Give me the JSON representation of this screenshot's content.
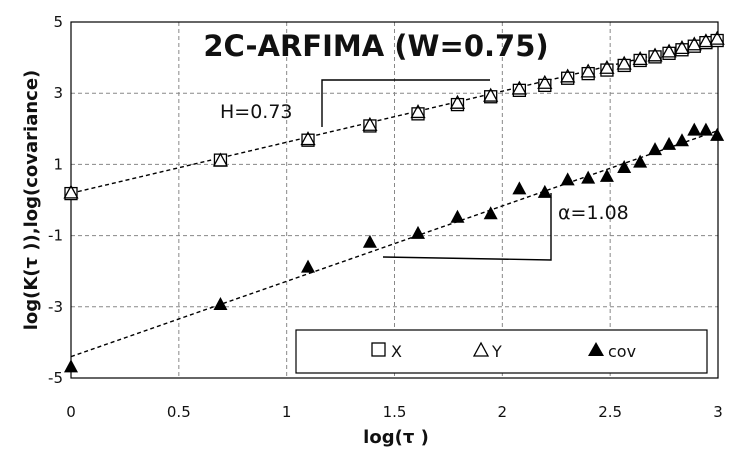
{
  "chart_data": {
    "type": "scatter",
    "title": "2C-ARFIMA (W=0.75)",
    "xlabel": "log(τ )",
    "ylabel": "log(K(τ )),log(covariance)",
    "xlim": [
      0,
      3
    ],
    "ylim": [
      -5,
      5
    ],
    "x_ticks": [
      "0",
      "0.5",
      "1",
      "1.5",
      "2",
      "2.5",
      "3"
    ],
    "y_ticks": [
      "-5",
      "-3",
      "-1",
      "1",
      "3",
      "5"
    ],
    "grid": "dashed major gridlines",
    "legend_position": "bottom-right",
    "series": [
      {
        "name": "X",
        "marker": "open-square",
        "x": [
          0,
          0.693,
          1.099,
          1.386,
          1.609,
          1.792,
          1.946,
          2.079,
          2.197,
          2.303,
          2.398,
          2.485,
          2.565,
          2.639,
          2.708,
          2.773,
          2.833,
          2.89,
          2.944,
          2.996
        ],
        "y": [
          0.18,
          1.12,
          1.68,
          2.08,
          2.42,
          2.68,
          2.9,
          3.08,
          3.22,
          3.42,
          3.55,
          3.65,
          3.78,
          3.92,
          4.02,
          4.12,
          4.22,
          4.32,
          4.42,
          4.48
        ]
      },
      {
        "name": "Y",
        "marker": "open-triangle",
        "x": [
          0,
          0.693,
          1.099,
          1.386,
          1.609,
          1.792,
          1.946,
          2.079,
          2.197,
          2.303,
          2.398,
          2.485,
          2.565,
          2.639,
          2.708,
          2.773,
          2.833,
          2.89,
          2.944,
          2.996
        ],
        "y": [
          0.2,
          1.1,
          1.7,
          2.1,
          2.46,
          2.72,
          2.92,
          3.12,
          3.28,
          3.46,
          3.6,
          3.7,
          3.82,
          3.95,
          4.05,
          4.16,
          4.26,
          4.36,
          4.45,
          4.52
        ]
      },
      {
        "name": "cov",
        "marker": "filled-triangle",
        "x": [
          0,
          0.693,
          1.099,
          1.386,
          1.609,
          1.792,
          1.946,
          2.079,
          2.197,
          2.303,
          2.398,
          2.485,
          2.565,
          2.639,
          2.708,
          2.773,
          2.833,
          2.89,
          2.944,
          2.996
        ],
        "y": [
          -4.7,
          -2.95,
          -1.9,
          -1.2,
          -0.95,
          -0.5,
          -0.4,
          0.3,
          0.2,
          0.55,
          0.6,
          0.65,
          0.9,
          1.05,
          1.4,
          1.55,
          1.65,
          1.95,
          1.95,
          1.8
        ]
      }
    ],
    "fit_lines": [
      {
        "series": "X,Y",
        "label": "H=0.73",
        "x": [
          0,
          3
        ],
        "y": [
          0.19,
          4.49
        ],
        "style": "dashed"
      },
      {
        "series": "cov",
        "label": "α=1.08",
        "x": [
          0,
          3
        ],
        "y": [
          -4.4,
          1.95
        ],
        "style": "dashed"
      }
    ]
  }
}
